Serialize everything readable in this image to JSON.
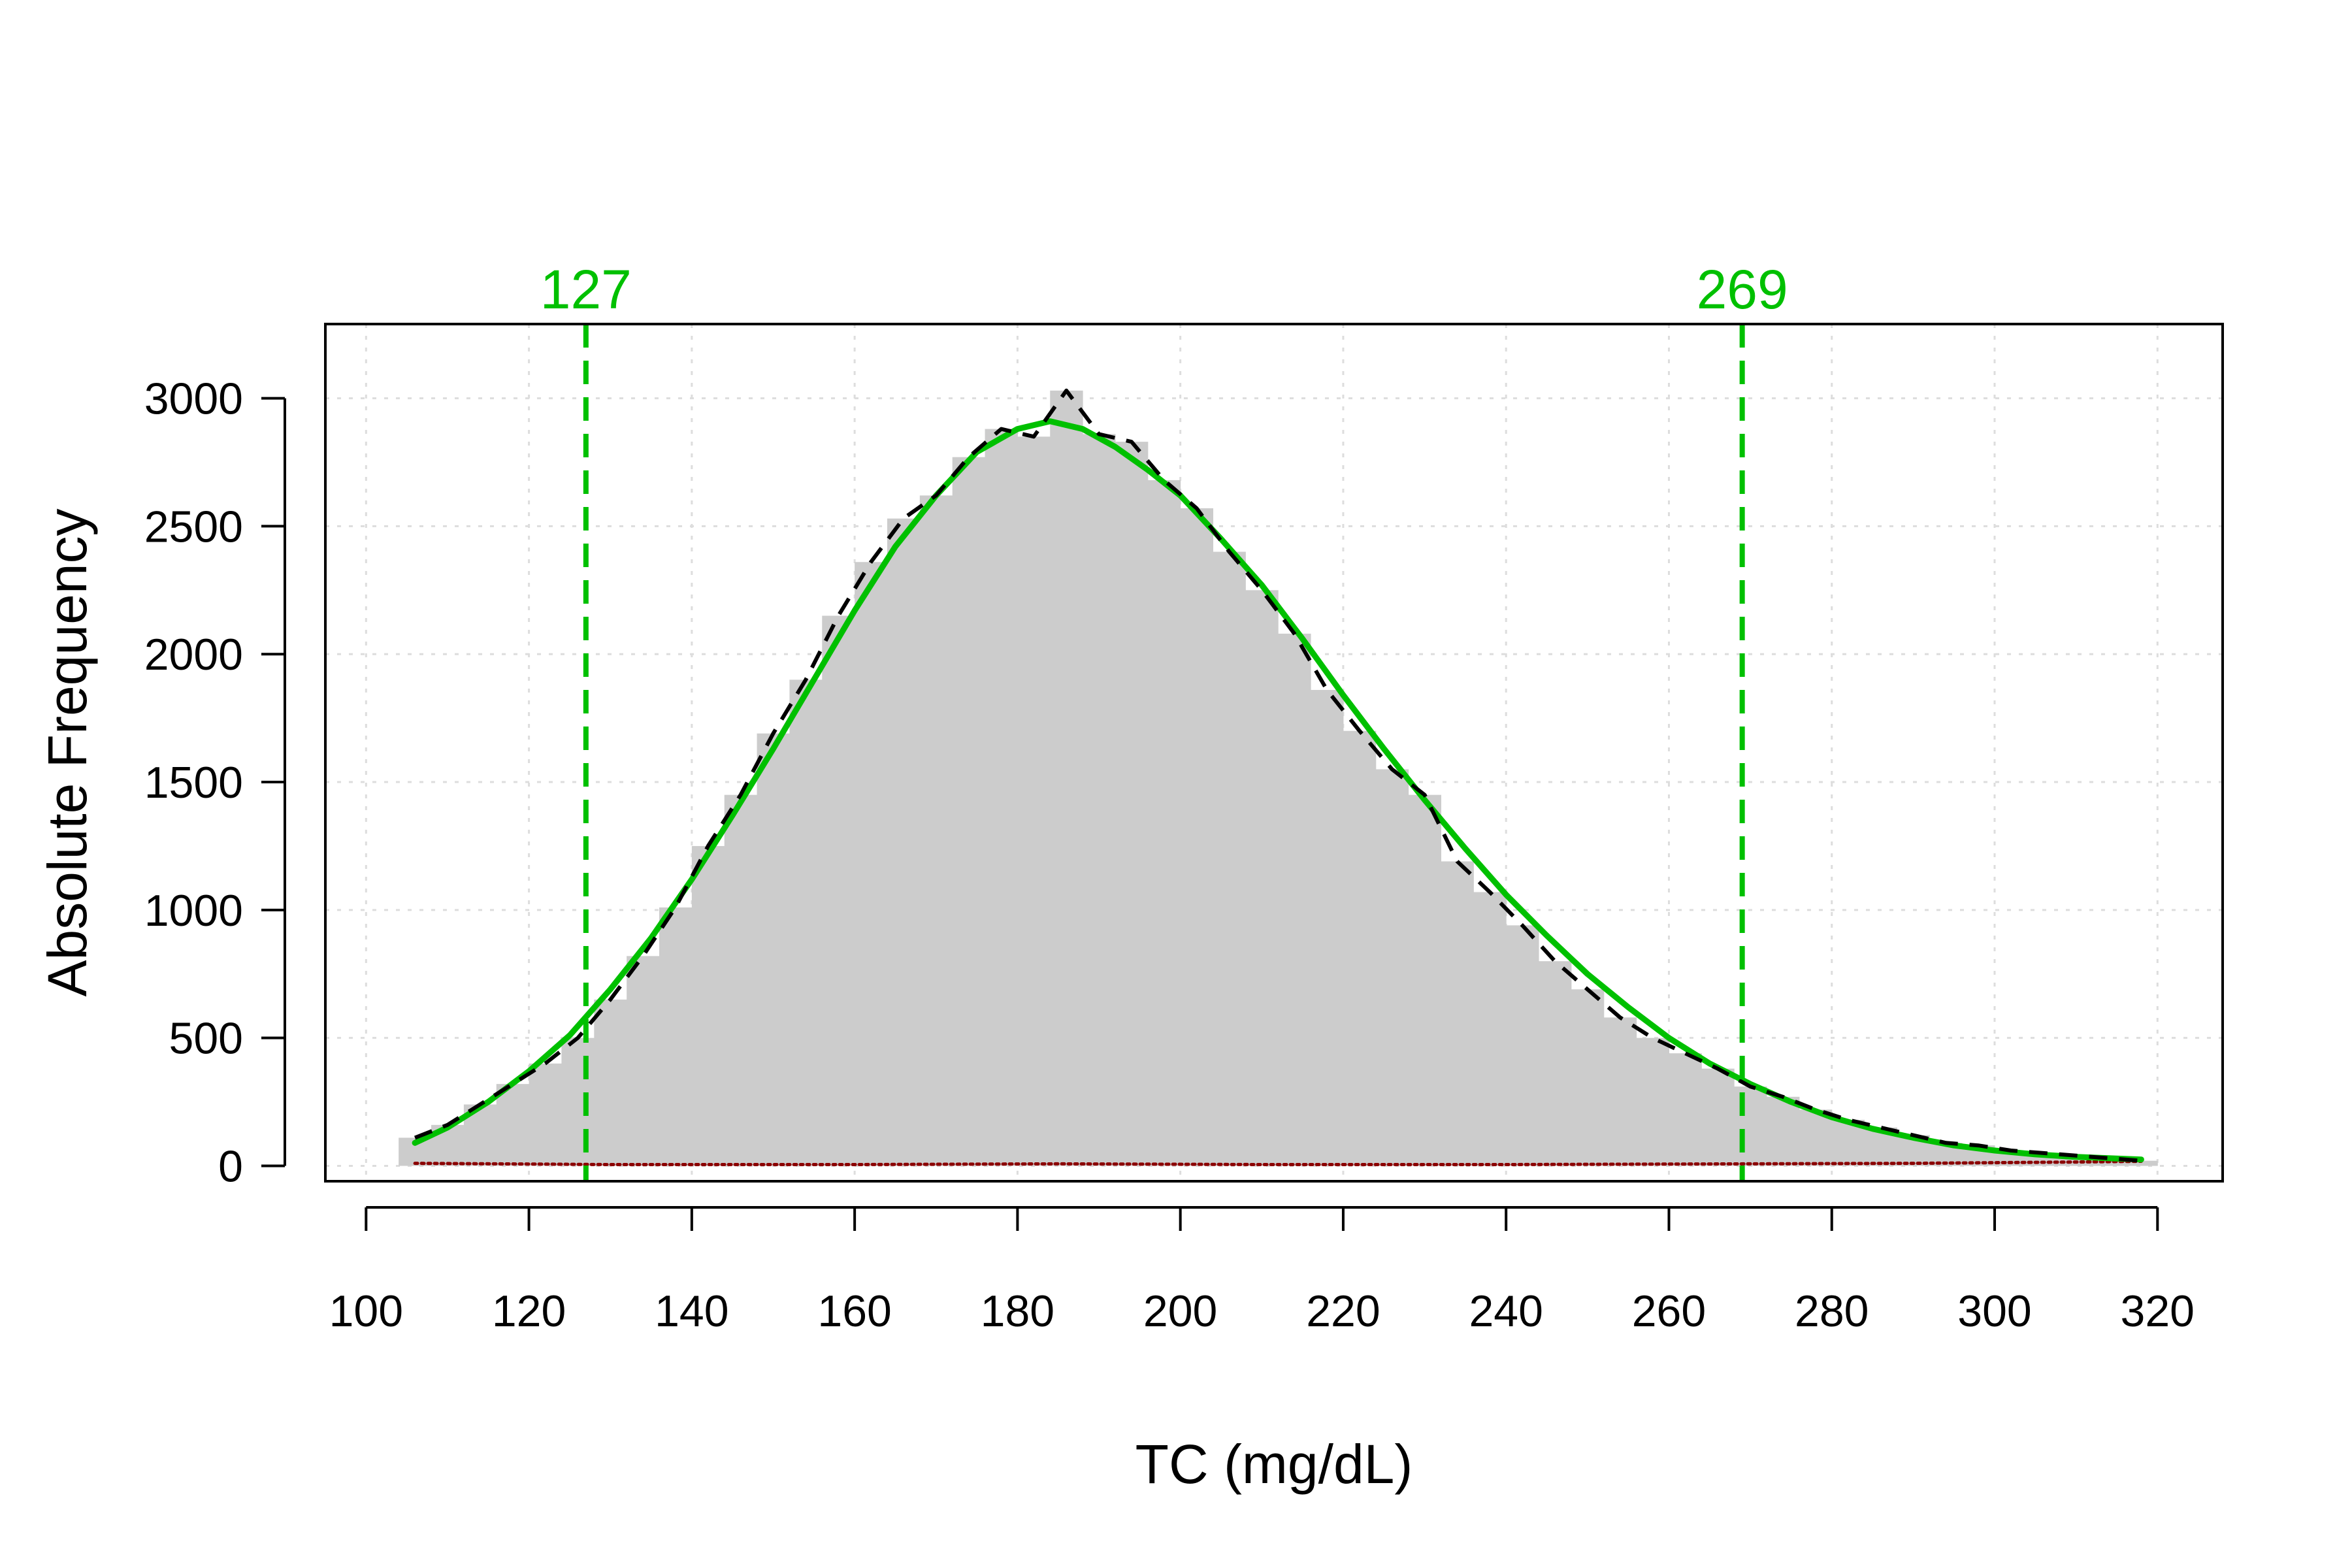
{
  "chart_data": {
    "type": "bar",
    "xlabel": "TC (mg/dL)",
    "ylabel": "Absolute Frequency",
    "xlim": [
      95,
      328
    ],
    "ylim": [
      -60,
      3290
    ],
    "grid": true,
    "x_ticks": [
      100,
      120,
      140,
      160,
      180,
      200,
      220,
      240,
      260,
      280,
      300,
      320
    ],
    "y_ticks": [
      0,
      500,
      1000,
      1500,
      2000,
      2500,
      3000
    ],
    "bin_width": 4,
    "bins": {
      "x": [
        106,
        110,
        114,
        118,
        122,
        126,
        130,
        134,
        138,
        142,
        146,
        150,
        154,
        158,
        162,
        166,
        170,
        174,
        178,
        182,
        186,
        190,
        194,
        198,
        202,
        206,
        210,
        214,
        218,
        222,
        226,
        230,
        234,
        238,
        242,
        246,
        250,
        254,
        258,
        262,
        266,
        270,
        274,
        278,
        282,
        286,
        290,
        294,
        298,
        302,
        306,
        310,
        314,
        318
      ],
      "values": [
        110,
        160,
        240,
        320,
        400,
        500,
        650,
        820,
        1010,
        1250,
        1450,
        1690,
        1900,
        2150,
        2360,
        2530,
        2620,
        2770,
        2880,
        2850,
        3030,
        2860,
        2830,
        2680,
        2570,
        2400,
        2250,
        2080,
        1860,
        1700,
        1550,
        1450,
        1190,
        1070,
        940,
        800,
        690,
        580,
        500,
        440,
        380,
        310,
        270,
        220,
        180,
        150,
        120,
        90,
        80,
        60,
        50,
        40,
        30,
        20
      ]
    },
    "series": [
      {
        "name": "",
        "style": "dashed",
        "color": "#000000",
        "x": [
          106,
          110,
          114,
          118,
          122,
          126,
          130,
          134,
          138,
          142,
          146,
          150,
          154,
          158,
          162,
          166,
          170,
          174,
          178,
          182,
          186,
          190,
          194,
          198,
          202,
          206,
          210,
          214,
          218,
          222,
          226,
          230,
          234,
          238,
          242,
          246,
          250,
          254,
          258,
          262,
          266,
          270,
          274,
          278,
          282,
          286,
          290,
          294,
          298,
          302,
          306,
          310,
          314,
          318
        ],
        "values": [
          110,
          160,
          240,
          320,
          400,
          500,
          650,
          820,
          1010,
          1250,
          1450,
          1690,
          1900,
          2150,
          2360,
          2530,
          2620,
          2770,
          2880,
          2850,
          3030,
          2860,
          2830,
          2680,
          2570,
          2400,
          2250,
          2080,
          1860,
          1700,
          1550,
          1450,
          1190,
          1070,
          940,
          800,
          690,
          580,
          500,
          440,
          380,
          310,
          270,
          220,
          180,
          150,
          120,
          90,
          80,
          60,
          50,
          40,
          30,
          20
        ]
      },
      {
        "name": "",
        "style": "solid",
        "color": "#00c000",
        "x": [
          106,
          110,
          115,
          120,
          125,
          130,
          135,
          140,
          145,
          150,
          155,
          160,
          165,
          170,
          175,
          180,
          184,
          188,
          192,
          196,
          200,
          205,
          210,
          215,
          220,
          225,
          230,
          235,
          240,
          245,
          250,
          255,
          260,
          265,
          270,
          275,
          280,
          285,
          290,
          295,
          300,
          305,
          310,
          318
        ],
        "values": [
          90,
          150,
          250,
          370,
          510,
          690,
          890,
          1120,
          1370,
          1630,
          1900,
          2170,
          2420,
          2620,
          2790,
          2880,
          2910,
          2880,
          2810,
          2720,
          2620,
          2450,
          2270,
          2060,
          1840,
          1630,
          1430,
          1240,
          1060,
          900,
          750,
          620,
          500,
          400,
          320,
          250,
          190,
          145,
          110,
          80,
          60,
          45,
          35,
          25
        ]
      },
      {
        "name": "",
        "style": "solid",
        "color": "#8b0000",
        "x": [
          106,
          130,
          160,
          185,
          210,
          240,
          270,
          290,
          310,
          318
        ],
        "values": [
          10,
          5,
          5,
          8,
          5,
          5,
          8,
          10,
          15,
          18
        ]
      }
    ],
    "reference_lines": [
      {
        "x": 127,
        "label": "127",
        "color": "#00c000",
        "style": "dashed"
      },
      {
        "x": 269,
        "label": "269",
        "color": "#00c000",
        "style": "dashed"
      }
    ],
    "colors": {
      "bars": "#cccccc",
      "grid": "#dddddd",
      "axis": "#000000"
    }
  }
}
